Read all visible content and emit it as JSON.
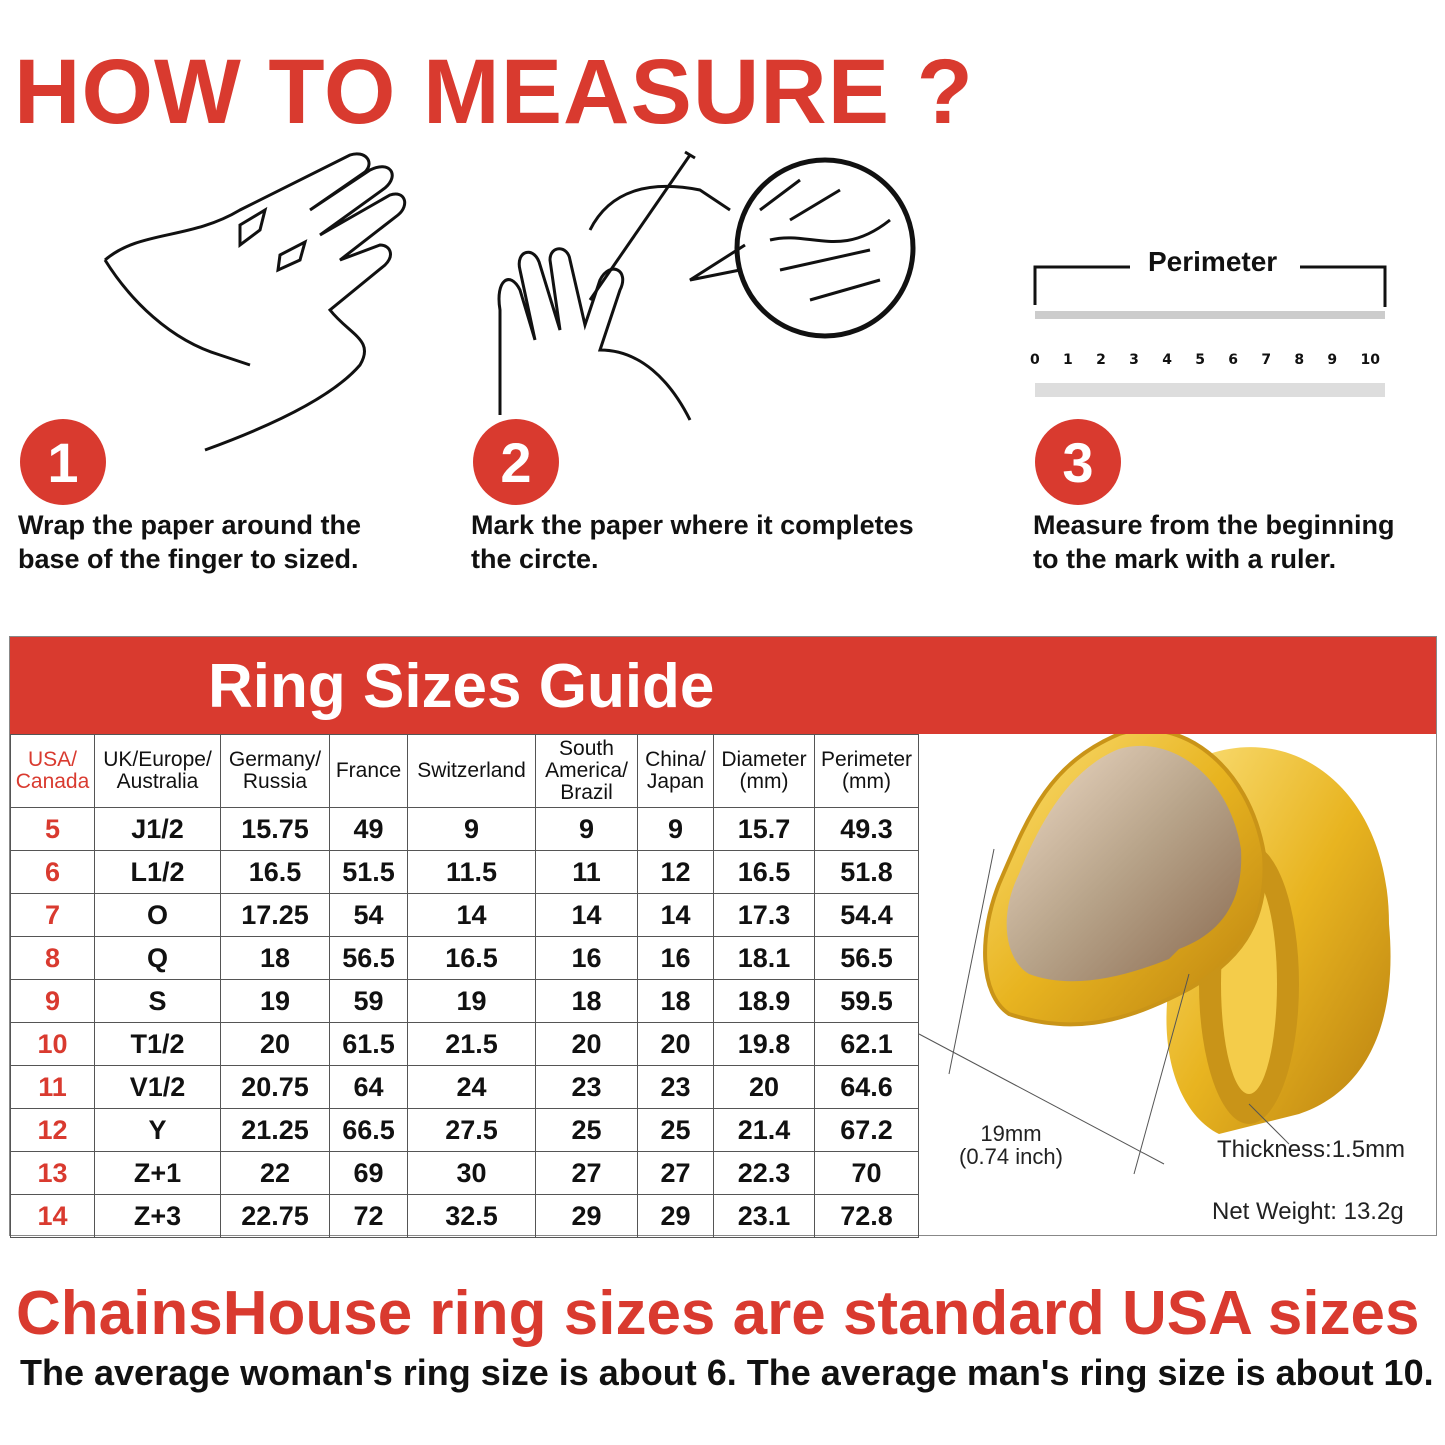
{
  "title": "HOW TO MEASURE ?",
  "steps": [
    {
      "number": "1",
      "text_line1": "Wrap the paper around the",
      "text_line2": "base of the finger to sized."
    },
    {
      "number": "2",
      "text_line1": "Mark the paper where it completes",
      "text_line2": "the circte."
    },
    {
      "number": "3",
      "text_line1": "Measure from the beginning",
      "text_line2": "to the mark with a ruler."
    }
  ],
  "ruler": {
    "label": "Perimeter",
    "numbers": [
      "0",
      "1",
      "2",
      "3",
      "4",
      "5",
      "6",
      "7",
      "8",
      "9",
      "10"
    ]
  },
  "guide": {
    "title": "Ring Sizes Guide",
    "headers": [
      [
        "USA/",
        "Canada"
      ],
      [
        "UK/Europe/",
        "Australia"
      ],
      [
        "Germany/",
        "Russia"
      ],
      [
        "France"
      ],
      [
        "Switzerland"
      ],
      [
        "South",
        "America/",
        "Brazil"
      ],
      [
        "China/",
        "Japan"
      ],
      [
        "Diameter",
        "(mm)"
      ],
      [
        "Perimeter",
        "(mm)"
      ]
    ],
    "rows": [
      [
        "5",
        "J1/2",
        "15.75",
        "49",
        "9",
        "9",
        "9",
        "15.7",
        "49.3"
      ],
      [
        "6",
        "L1/2",
        "16.5",
        "51.5",
        "11.5",
        "11",
        "12",
        "16.5",
        "51.8"
      ],
      [
        "7",
        "O",
        "17.25",
        "54",
        "14",
        "14",
        "14",
        "17.3",
        "54.4"
      ],
      [
        "8",
        "Q",
        "18",
        "56.5",
        "16.5",
        "16",
        "16",
        "18.1",
        "56.5"
      ],
      [
        "9",
        "S",
        "19",
        "59",
        "19",
        "18",
        "18",
        "18.9",
        "59.5"
      ],
      [
        "10",
        "T1/2",
        "20",
        "61.5",
        "21.5",
        "20",
        "20",
        "19.8",
        "62.1"
      ],
      [
        "11",
        "V1/2",
        "20.75",
        "64",
        "24",
        "23",
        "23",
        "20",
        "64.6"
      ],
      [
        "12",
        "Y",
        "21.25",
        "66.5",
        "27.5",
        "25",
        "25",
        "21.4",
        "67.2"
      ],
      [
        "13",
        "Z+1",
        "22",
        "69",
        "30",
        "27",
        "27",
        "22.3",
        "70"
      ],
      [
        "14",
        "Z+3",
        "22.75",
        "72",
        "32.5",
        "29",
        "29",
        "23.1",
        "72.8"
      ]
    ],
    "ring": {
      "width_line1": "19mm",
      "width_line2": "(0.74 inch)",
      "thickness": "Thickness:1.5mm",
      "weight": "Net Weight: 13.2g"
    }
  },
  "footer": {
    "headline": "ChainsHouse ring sizes are standard USA sizes",
    "subline": "The average woman's ring size is about 6. The average man's ring size is about 10."
  },
  "colors": {
    "accent": "#d93a2f",
    "gold": "#e8b420"
  }
}
